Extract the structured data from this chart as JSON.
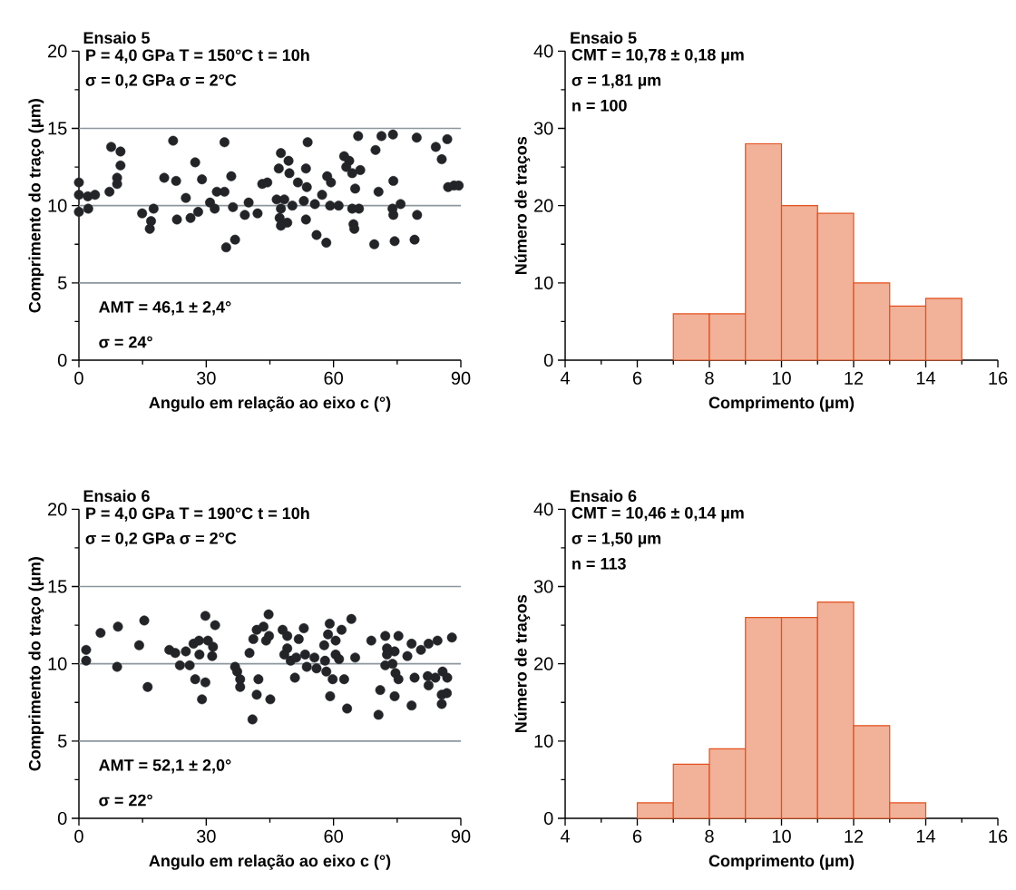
{
  "chart_data": [
    {
      "type": "scatter",
      "title": "Ensaio 5",
      "annotations": [
        "P = 4,0 GPa    T = 150°C   t = 10h",
        "σ = 0,2 GPa     σ = 2°C",
        "AMT = 46,1 ± 2,4°",
        "σ =  24°"
      ],
      "xlabel": "Angulo em relação ao eixo c (°)",
      "ylabel": "Comprimento do traço (μm)",
      "color": "#222427",
      "marker": "circle",
      "grid": "y",
      "xlim": [
        0,
        90
      ],
      "ylim": [
        0,
        20
      ],
      "xticks": [
        0,
        30,
        60,
        90
      ],
      "yticks": [
        0,
        5,
        10,
        15,
        20
      ],
      "x": [
        0,
        0,
        0,
        2.1,
        2.2,
        3.8,
        7.2,
        7.6,
        9.8,
        9.8,
        9.0,
        9.0,
        14.9,
        17.6,
        17.0,
        16.7,
        22.2,
        20.1,
        22.9,
        23.1,
        25.2,
        27.4,
        29.0,
        26.3,
        28.1,
        30.9,
        32.0,
        32.5,
        34.3,
        34.3,
        35.9,
        36.3,
        34.7,
        36.8,
        39.1,
        40.0,
        42.1,
        43.2,
        44.4,
        47.6,
        49.4,
        47.1,
        49.6,
        53.9,
        53.5,
        51.6,
        53.7,
        46.6,
        48.4,
        50.3,
        53.0,
        55.6,
        57.3,
        47.6,
        47.3,
        49.1,
        47.6,
        53.5,
        56.0,
        58.3,
        58.5,
        59.4,
        59.2,
        61.2,
        62.5,
        63.7,
        63.0,
        64.4,
        66.3,
        65.1,
        64.4,
        66.0,
        64.7,
        64.9,
        65.8,
        69.9,
        71.3,
        74.0,
        70.6,
        74.1,
        73.9,
        75.8,
        74.1,
        69.6,
        74.4,
        79.1,
        79.7,
        79.6,
        84.1,
        86.8,
        85.5,
        87.0,
        88.4,
        89.5
      ],
      "values": [
        11.5,
        10.7,
        9.6,
        10.6,
        9.8,
        10.7,
        10.9,
        13.8,
        13.5,
        12.6,
        11.8,
        11.4,
        9.5,
        9.8,
        9.0,
        8.5,
        14.2,
        11.8,
        11.6,
        9.1,
        10.5,
        12.8,
        11.7,
        9.2,
        9.6,
        10.2,
        9.8,
        10.9,
        10.9,
        14.1,
        11.9,
        9.9,
        7.3,
        7.8,
        9.4,
        10.2,
        9.5,
        11.4,
        11.5,
        13.4,
        12.9,
        12.4,
        12.1,
        14.1,
        12.4,
        11.5,
        11.2,
        10.4,
        10.4,
        10.0,
        10.3,
        10.1,
        10.7,
        9.8,
        9.2,
        8.9,
        8.7,
        9.1,
        8.1,
        7.6,
        11.9,
        11.5,
        10.0,
        10.0,
        13.2,
        12.9,
        12.5,
        12.1,
        12.3,
        11.1,
        9.8,
        9.8,
        8.8,
        8.5,
        14.5,
        13.6,
        14.5,
        14.6,
        10.9,
        11.6,
        9.8,
        10.1,
        9.4,
        7.5,
        7.7,
        7.8,
        9.4,
        14.4,
        13.8,
        14.3,
        13.0,
        11.2,
        11.3,
        11.3
      ]
    },
    {
      "type": "histogram",
      "title": "Ensaio 5",
      "annotations": [
        "CMT =  10,78 ± 0,18 µm",
        "σ = 1,81 µm",
        "n = 100"
      ],
      "xlabel": "Comprimento (μm)",
      "ylabel": "Número de traços",
      "color": "#e2511d",
      "xlim": [
        4,
        16
      ],
      "ylim": [
        0,
        40
      ],
      "xticks": [
        4,
        6,
        8,
        10,
        12,
        14,
        16
      ],
      "yticks": [
        0,
        10,
        20,
        30,
        40
      ],
      "bins": [
        7,
        8,
        9,
        10,
        11,
        12,
        13,
        14,
        15
      ],
      "values": [
        6,
        6,
        28,
        20,
        19,
        10,
        7,
        8
      ]
    },
    {
      "type": "scatter",
      "title": "Ensaio 6",
      "annotations": [
        "P = 4,0 GPa    T = 190°C   t = 10h",
        "σ = 0,2 GPa     σ = 2°C",
        "AMT = 52,1 ± 2,0°",
        "σ =  22°"
      ],
      "xlabel": "Angulo em relação ao eixo c (°)",
      "ylabel": "Comprimento do traço (μm)",
      "color": "#222427",
      "marker": "circle",
      "grid": "y",
      "xlim": [
        0,
        90
      ],
      "ylim": [
        0,
        20
      ],
      "xticks": [
        0,
        30,
        60,
        90
      ],
      "yticks": [
        0,
        5,
        10,
        15,
        20
      ],
      "x": [
        1.7,
        1.7,
        5.1,
        9.2,
        9.0,
        15.4,
        14.2,
        16.2,
        21.3,
        22.7,
        25.2,
        27.0,
        28.3,
        28.4,
        29.8,
        30.4,
        31.6,
        32.1,
        31.4,
        23.8,
        26.1,
        27.4,
        29.8,
        29.0,
        36.8,
        37.3,
        38.0,
        38.0,
        40.9,
        40.2,
        41.1,
        41.9,
        43.5,
        44.7,
        44.1,
        42.3,
        41.9,
        45.1,
        44.8,
        48.0,
        49.1,
        53.0,
        51.8,
        49.1,
        48.4,
        49.9,
        51.2,
        53.3,
        55.5,
        53.7,
        56.0,
        58.0,
        58.3,
        50.9,
        59.1,
        61.9,
        64.2,
        58.7,
        60.5,
        57.8,
        60.5,
        61.3,
        59.8,
        62.5,
        59.2,
        63.2,
        65.1,
        68.9,
        72.2,
        75.3,
        72.6,
        74.4,
        72.6,
        77.4,
        78.4,
        80.6,
        82.4,
        84.5,
        87.9,
        72.2,
        73.9,
        74.6,
        75.3,
        79.1,
        82.2,
        82.4,
        84.0,
        85.7,
        86.8,
        71.0,
        74.4,
        78.4,
        70.6,
        85.5,
        86.7,
        85.5
      ],
      "values": [
        10.9,
        10.2,
        12.0,
        12.4,
        9.8,
        12.8,
        11.2,
        8.5,
        10.9,
        10.7,
        10.8,
        11.3,
        11.5,
        10.6,
        13.1,
        11.5,
        11.1,
        12.5,
        10.5,
        9.9,
        9.9,
        9.0,
        8.8,
        7.7,
        9.8,
        9.5,
        9.0,
        8.5,
        6.4,
        10.7,
        11.6,
        12.2,
        12.4,
        13.2,
        11.5,
        9.0,
        8.0,
        7.7,
        11.8,
        12.2,
        11.8,
        12.3,
        11.6,
        11.0,
        10.6,
        10.2,
        10.4,
        10.6,
        10.4,
        9.8,
        9.7,
        10.2,
        9.5,
        9.1,
        12.6,
        12.2,
        12.9,
        11.9,
        11.5,
        11.2,
        10.6,
        10.3,
        9.0,
        9.0,
        7.9,
        7.1,
        10.4,
        11.5,
        11.8,
        11.8,
        11.0,
        10.8,
        10.6,
        10.5,
        11.3,
        10.9,
        11.3,
        11.5,
        11.7,
        9.9,
        10.0,
        9.4,
        9.0,
        9.1,
        9.2,
        8.6,
        9.1,
        9.5,
        9.1,
        8.3,
        7.9,
        7.3,
        6.7,
        8.0,
        8.1,
        7.4
      ]
    },
    {
      "type": "histogram",
      "title": "Ensaio 6",
      "annotations": [
        "CMT =  10,46 ± 0,14 µm",
        "σ = 1,50 µm",
        "n = 113"
      ],
      "xlabel": "Comprimento (μm)",
      "ylabel": "Número de traços",
      "color": "#e2511d",
      "xlim": [
        4,
        16
      ],
      "ylim": [
        0,
        40
      ],
      "xticks": [
        4,
        6,
        8,
        10,
        12,
        14,
        16
      ],
      "yticks": [
        0,
        10,
        20,
        30,
        40
      ],
      "bins": [
        6,
        7,
        8,
        9,
        10,
        11,
        12,
        13,
        14
      ],
      "values": [
        2,
        7,
        9,
        26,
        26,
        28,
        12,
        2
      ]
    }
  ]
}
